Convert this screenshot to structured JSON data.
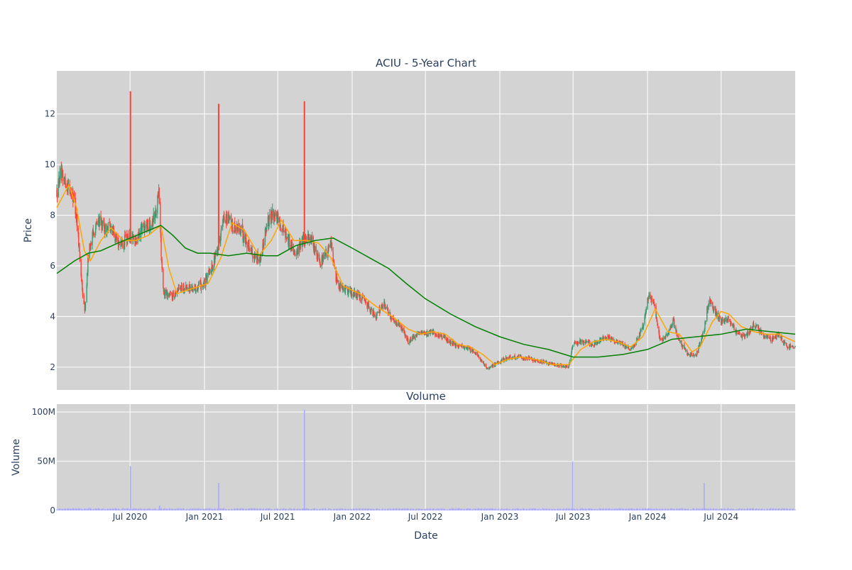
{
  "figure": {
    "title": "ACIU - 5-Year Chart",
    "subplot_title": "Volume",
    "x_axis_label": "Date",
    "price_axis_label": "Price",
    "volume_axis_label": "Volume"
  },
  "colors": {
    "plot_bg": "#d3d3d3",
    "grid": "#ffffff",
    "up": "#3d9970",
    "down": "#ff4136",
    "ma_short": "#ffa500",
    "ma_long": "#008000",
    "volume": "#aaaaff",
    "text": "#2a3f5f"
  },
  "chart_data": [
    {
      "type": "candlestick",
      "name": "price",
      "title": "ACIU - 5-Year Chart",
      "xlabel": "",
      "ylabel": "Price",
      "x_range": [
        "2020-01-02",
        "2024-12-31"
      ],
      "ylim": [
        1.1,
        13.7
      ],
      "y_ticks": [
        2,
        4,
        6,
        8,
        10,
        12
      ],
      "grid": true,
      "legend": "none",
      "price_path": [
        [
          "2020-01-02",
          8.8
        ],
        [
          "2020-01-10",
          9.6
        ],
        [
          "2020-01-20",
          9.4
        ],
        [
          "2020-02-01",
          9.1
        ],
        [
          "2020-02-15",
          8.6
        ],
        [
          "2020-02-25",
          7.0
        ],
        [
          "2020-03-05",
          5.0
        ],
        [
          "2020-03-12",
          4.2
        ],
        [
          "2020-03-20",
          6.5
        ],
        [
          "2020-04-01",
          7.3
        ],
        [
          "2020-04-15",
          7.8
        ],
        [
          "2020-05-01",
          7.4
        ],
        [
          "2020-05-15",
          7.6
        ],
        [
          "2020-06-01",
          6.9
        ],
        [
          "2020-06-15",
          7.0
        ],
        [
          "2020-07-01",
          7.2
        ],
        [
          "2020-07-15",
          6.9
        ],
        [
          "2020-08-01",
          7.5
        ],
        [
          "2020-08-15",
          7.6
        ],
        [
          "2020-09-01",
          8.0
        ],
        [
          "2020-09-10",
          8.9
        ],
        [
          "2020-09-20",
          5.0
        ],
        [
          "2020-10-01",
          4.9
        ],
        [
          "2020-10-15",
          4.8
        ],
        [
          "2020-11-01",
          5.2
        ],
        [
          "2020-12-01",
          5.1
        ],
        [
          "2021-01-01",
          5.3
        ],
        [
          "2021-01-20",
          6.0
        ],
        [
          "2021-02-01",
          6.6
        ],
        [
          "2021-02-10",
          7.3
        ],
        [
          "2021-02-20",
          8.0
        ],
        [
          "2021-03-10",
          7.6
        ],
        [
          "2021-04-01",
          7.4
        ],
        [
          "2021-04-20",
          6.8
        ],
        [
          "2021-05-01",
          6.4
        ],
        [
          "2021-05-20",
          6.3
        ],
        [
          "2021-06-01",
          7.5
        ],
        [
          "2021-06-20",
          8.1
        ],
        [
          "2021-07-10",
          7.6
        ],
        [
          "2021-08-01",
          6.9
        ],
        [
          "2021-08-15",
          6.5
        ],
        [
          "2021-09-01",
          7.0
        ],
        [
          "2021-09-15",
          7.2
        ],
        [
          "2021-10-01",
          6.6
        ],
        [
          "2021-10-15",
          6.2
        ],
        [
          "2021-11-01",
          6.5
        ],
        [
          "2021-11-10",
          7.0
        ],
        [
          "2021-11-20",
          5.6
        ],
        [
          "2021-12-01",
          5.2
        ],
        [
          "2021-12-20",
          5.0
        ],
        [
          "2022-01-10",
          4.9
        ],
        [
          "2022-02-01",
          4.6
        ],
        [
          "2022-03-01",
          4.0
        ],
        [
          "2022-03-20",
          4.5
        ],
        [
          "2022-04-10",
          3.9
        ],
        [
          "2022-05-01",
          3.6
        ],
        [
          "2022-05-20",
          3.0
        ],
        [
          "2022-06-10",
          3.3
        ],
        [
          "2022-07-01",
          3.3
        ],
        [
          "2022-07-20",
          3.4
        ],
        [
          "2022-08-10",
          3.2
        ],
        [
          "2022-09-01",
          3.0
        ],
        [
          "2022-09-20",
          2.8
        ],
        [
          "2022-10-10",
          2.8
        ],
        [
          "2022-11-01",
          2.6
        ],
        [
          "2022-12-01",
          1.9
        ],
        [
          "2022-12-20",
          2.1
        ],
        [
          "2023-01-20",
          2.4
        ],
        [
          "2023-02-20",
          2.4
        ],
        [
          "2023-03-20",
          2.3
        ],
        [
          "2023-04-20",
          2.2
        ],
        [
          "2023-05-20",
          2.1
        ],
        [
          "2023-06-20",
          2.0
        ],
        [
          "2023-07-01",
          2.9
        ],
        [
          "2023-07-20",
          3.0
        ],
        [
          "2023-08-20",
          2.9
        ],
        [
          "2023-09-20",
          3.2
        ],
        [
          "2023-10-20",
          3.0
        ],
        [
          "2023-11-20",
          2.7
        ],
        [
          "2023-12-01",
          2.9
        ],
        [
          "2023-12-20",
          3.6
        ],
        [
          "2024-01-05",
          4.9
        ],
        [
          "2024-01-20",
          4.3
        ],
        [
          "2024-02-01",
          3.0
        ],
        [
          "2024-02-20",
          3.3
        ],
        [
          "2024-03-05",
          3.8
        ],
        [
          "2024-03-20",
          3.0
        ],
        [
          "2024-04-10",
          2.5
        ],
        [
          "2024-05-01",
          2.5
        ],
        [
          "2024-05-20",
          3.5
        ],
        [
          "2024-06-01",
          4.7
        ],
        [
          "2024-06-15",
          4.2
        ],
        [
          "2024-07-01",
          3.8
        ],
        [
          "2024-07-20",
          3.9
        ],
        [
          "2024-08-10",
          3.3
        ],
        [
          "2024-09-01",
          3.2
        ],
        [
          "2024-09-20",
          3.7
        ],
        [
          "2024-10-10",
          3.3
        ],
        [
          "2024-11-01",
          3.1
        ],
        [
          "2024-11-20",
          3.3
        ],
        [
          "2024-12-10",
          2.8
        ],
        [
          "2024-12-31",
          2.8
        ]
      ],
      "spikes": [
        {
          "date": "2020-07-02",
          "high": 12.9
        },
        {
          "date": "2021-02-05",
          "high": 12.4
        },
        {
          "date": "2021-09-05",
          "high": 12.5
        }
      ],
      "series": [
        {
          "type": "line",
          "color": "#ffa500",
          "points": [
            [
              "2020-01-02",
              8.3
            ],
            [
              "2020-02-01",
              9.2
            ],
            [
              "2020-02-20",
              8.3
            ],
            [
              "2020-03-10",
              6.6
            ],
            [
              "2020-03-25",
              6.2
            ],
            [
              "2020-04-20",
              7.0
            ],
            [
              "2020-05-15",
              7.5
            ],
            [
              "2020-06-15",
              7.0
            ],
            [
              "2020-07-15",
              7.0
            ],
            [
              "2020-08-15",
              7.2
            ],
            [
              "2020-09-15",
              7.6
            ],
            [
              "2020-10-05",
              5.9
            ],
            [
              "2020-10-25",
              4.9
            ],
            [
              "2020-12-01",
              5.1
            ],
            [
              "2021-01-10",
              5.3
            ],
            [
              "2021-02-10",
              6.3
            ],
            [
              "2021-03-10",
              7.7
            ],
            [
              "2021-04-10",
              7.4
            ],
            [
              "2021-05-15",
              6.4
            ],
            [
              "2021-06-15",
              7.0
            ],
            [
              "2021-07-10",
              7.8
            ],
            [
              "2021-08-10",
              7.0
            ],
            [
              "2021-09-10",
              7.0
            ],
            [
              "2021-10-10",
              6.9
            ],
            [
              "2021-11-10",
              6.3
            ],
            [
              "2021-12-10",
              5.2
            ],
            [
              "2022-01-20",
              4.9
            ],
            [
              "2022-03-01",
              4.4
            ],
            [
              "2022-04-10",
              4.0
            ],
            [
              "2022-05-20",
              3.5
            ],
            [
              "2022-06-20",
              3.3
            ],
            [
              "2022-07-20",
              3.4
            ],
            [
              "2022-08-20",
              3.3
            ],
            [
              "2022-09-20",
              2.9
            ],
            [
              "2022-10-20",
              2.8
            ],
            [
              "2022-11-20",
              2.5
            ],
            [
              "2022-12-20",
              2.1
            ],
            [
              "2023-01-20",
              2.3
            ],
            [
              "2023-02-20",
              2.4
            ],
            [
              "2023-04-01",
              2.3
            ],
            [
              "2023-05-10",
              2.1
            ],
            [
              "2023-06-20",
              2.1
            ],
            [
              "2023-07-20",
              2.7
            ],
            [
              "2023-08-20",
              3.0
            ],
            [
              "2023-09-20",
              3.1
            ],
            [
              "2023-10-20",
              3.0
            ],
            [
              "2023-11-20",
              2.8
            ],
            [
              "2023-12-20",
              3.2
            ],
            [
              "2024-01-20",
              4.3
            ],
            [
              "2024-02-20",
              3.4
            ],
            [
              "2024-03-20",
              3.3
            ],
            [
              "2024-04-20",
              2.6
            ],
            [
              "2024-05-10",
              2.8
            ],
            [
              "2024-06-10",
              3.8
            ],
            [
              "2024-07-01",
              4.2
            ],
            [
              "2024-07-20",
              4.1
            ],
            [
              "2024-08-20",
              3.6
            ],
            [
              "2024-09-20",
              3.4
            ],
            [
              "2024-10-20",
              3.3
            ],
            [
              "2024-11-20",
              3.3
            ],
            [
              "2024-12-31",
              3.0
            ]
          ]
        },
        {
          "type": "line",
          "color": "#008000",
          "points": [
            [
              "2020-01-02",
              5.7
            ],
            [
              "2020-02-15",
              6.2
            ],
            [
              "2020-03-20",
              6.5
            ],
            [
              "2020-04-20",
              6.6
            ],
            [
              "2020-06-01",
              6.9
            ],
            [
              "2020-08-01",
              7.3
            ],
            [
              "2020-09-15",
              7.6
            ],
            [
              "2020-10-15",
              7.2
            ],
            [
              "2020-11-15",
              6.7
            ],
            [
              "2020-12-15",
              6.5
            ],
            [
              "2021-01-15",
              6.5
            ],
            [
              "2021-03-01",
              6.4
            ],
            [
              "2021-04-15",
              6.5
            ],
            [
              "2021-06-01",
              6.4
            ],
            [
              "2021-07-01",
              6.4
            ],
            [
              "2021-08-15",
              6.8
            ],
            [
              "2021-10-01",
              7.0
            ],
            [
              "2021-11-15",
              7.1
            ],
            [
              "2022-01-01",
              6.7
            ],
            [
              "2022-02-15",
              6.3
            ],
            [
              "2022-04-01",
              5.9
            ],
            [
              "2022-05-15",
              5.3
            ],
            [
              "2022-07-01",
              4.7
            ],
            [
              "2022-09-01",
              4.1
            ],
            [
              "2022-11-01",
              3.6
            ],
            [
              "2023-01-01",
              3.2
            ],
            [
              "2023-03-01",
              2.9
            ],
            [
              "2023-05-01",
              2.7
            ],
            [
              "2023-07-01",
              2.4
            ],
            [
              "2023-09-01",
              2.4
            ],
            [
              "2023-11-01",
              2.5
            ],
            [
              "2024-01-01",
              2.7
            ],
            [
              "2024-03-01",
              3.1
            ],
            [
              "2024-05-01",
              3.2
            ],
            [
              "2024-07-01",
              3.3
            ],
            [
              "2024-09-01",
              3.5
            ],
            [
              "2024-11-01",
              3.4
            ],
            [
              "2024-12-31",
              3.3
            ]
          ]
        }
      ]
    },
    {
      "type": "bar",
      "name": "volume",
      "title": "Volume",
      "xlabel": "Date",
      "ylabel": "Volume",
      "x_range": [
        "2020-01-02",
        "2024-12-31"
      ],
      "ylim": [
        0,
        108000000
      ],
      "y_ticks": [
        0,
        50000000,
        100000000
      ],
      "y_tick_labels": [
        "0",
        "50M",
        "100M"
      ],
      "x_ticks": [
        "2020-07-01",
        "2021-01-01",
        "2021-07-01",
        "2022-01-01",
        "2022-07-01",
        "2023-01-01",
        "2023-07-01",
        "2024-01-01",
        "2024-07-01"
      ],
      "x_tick_labels": [
        "Jul 2020",
        "Jan 2021",
        "Jul 2021",
        "Jan 2022",
        "Jul 2022",
        "Jan 2023",
        "Jul 2023",
        "Jan 2024",
        "Jul 2024"
      ],
      "baseline_volume": 1500000,
      "notable": [
        {
          "date": "2020-07-02",
          "value": 45000000
        },
        {
          "date": "2020-09-12",
          "value": 5000000
        },
        {
          "date": "2021-02-05",
          "value": 28000000
        },
        {
          "date": "2021-09-05",
          "value": 102000000
        },
        {
          "date": "2023-06-30",
          "value": 50000000
        },
        {
          "date": "2024-05-20",
          "value": 28000000
        }
      ]
    }
  ]
}
